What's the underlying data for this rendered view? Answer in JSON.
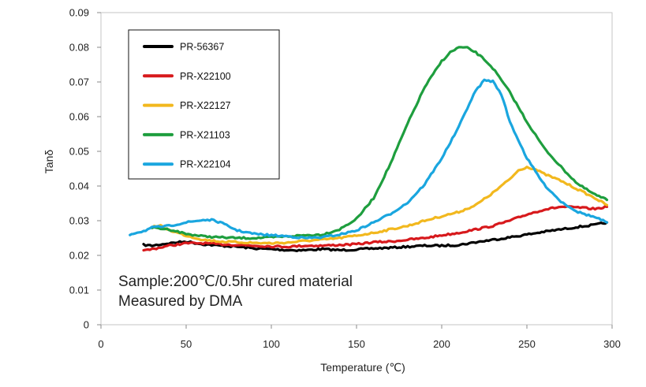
{
  "chart_data": {
    "type": "line",
    "title": "",
    "xlabel": "Temperature (℃)",
    "ylabel": "Tanδ",
    "xlim": [
      0,
      300
    ],
    "ylim": [
      0,
      0.09
    ],
    "x_ticks": [
      "0",
      "50",
      "100",
      "150",
      "200",
      "250",
      "300"
    ],
    "y_ticks": [
      "0",
      "0.01",
      "0.02",
      "0.03",
      "0.04",
      "0.05",
      "0.06",
      "0.07",
      "0.08",
      "0.09"
    ],
    "grid": false,
    "legend_position": "top-left",
    "annotations": [
      "Sample:200℃/0.5hr cured material",
      "Measured by DMA"
    ],
    "series": [
      {
        "name": "PR-56367",
        "color": "#000000",
        "x": [
          25,
          30,
          40,
          50,
          60,
          70,
          80,
          90,
          100,
          110,
          120,
          130,
          140,
          150,
          160,
          170,
          180,
          190,
          200,
          210,
          220,
          230,
          240,
          250,
          260,
          270,
          280,
          290,
          297
        ],
        "y": [
          0.023,
          0.0228,
          0.0235,
          0.024,
          0.0232,
          0.0228,
          0.0225,
          0.022,
          0.0218,
          0.0215,
          0.0215,
          0.0218,
          0.0215,
          0.0217,
          0.022,
          0.0222,
          0.0225,
          0.0228,
          0.0228,
          0.023,
          0.0238,
          0.0245,
          0.0252,
          0.026,
          0.0268,
          0.0275,
          0.0282,
          0.0288,
          0.0295
        ]
      },
      {
        "name": "PR-X22100",
        "color": "#d7191c",
        "x": [
          25,
          30,
          40,
          50,
          60,
          70,
          80,
          90,
          100,
          110,
          120,
          130,
          140,
          150,
          160,
          170,
          180,
          190,
          200,
          210,
          220,
          230,
          240,
          250,
          260,
          270,
          280,
          290,
          297
        ],
        "y": [
          0.0213,
          0.0218,
          0.0228,
          0.0235,
          0.0235,
          0.0232,
          0.023,
          0.0228,
          0.0226,
          0.0225,
          0.0228,
          0.0228,
          0.023,
          0.0232,
          0.0238,
          0.024,
          0.0245,
          0.025,
          0.0258,
          0.0265,
          0.0275,
          0.0285,
          0.03,
          0.0318,
          0.0332,
          0.034,
          0.0338,
          0.0334,
          0.034
        ]
      },
      {
        "name": "PR-X22127",
        "color": "#f2b81e",
        "x": [
          30,
          35,
          40,
          50,
          60,
          70,
          80,
          90,
          100,
          110,
          120,
          130,
          140,
          150,
          160,
          170,
          180,
          190,
          200,
          210,
          220,
          230,
          240,
          245,
          250,
          255,
          260,
          270,
          280,
          290,
          297
        ],
        "y": [
          0.0283,
          0.0285,
          0.0273,
          0.0257,
          0.0245,
          0.024,
          0.0238,
          0.0236,
          0.0235,
          0.0237,
          0.0242,
          0.0245,
          0.025,
          0.0257,
          0.0265,
          0.0275,
          0.0285,
          0.03,
          0.0313,
          0.0325,
          0.0345,
          0.038,
          0.042,
          0.0445,
          0.0455,
          0.0448,
          0.0435,
          0.0415,
          0.039,
          0.0365,
          0.0345
        ]
      },
      {
        "name": "PR-X21103",
        "color": "#1e9e3e",
        "x": [
          30,
          40,
          50,
          60,
          70,
          80,
          90,
          100,
          110,
          120,
          130,
          140,
          150,
          160,
          170,
          180,
          190,
          200,
          205,
          210,
          215,
          220,
          225,
          230,
          240,
          250,
          260,
          270,
          280,
          290,
          297
        ],
        "y": [
          0.028,
          0.0275,
          0.0262,
          0.0255,
          0.0252,
          0.025,
          0.025,
          0.0252,
          0.0255,
          0.0258,
          0.026,
          0.0275,
          0.0305,
          0.0365,
          0.0465,
          0.058,
          0.0685,
          0.076,
          0.0785,
          0.08,
          0.0798,
          0.0785,
          0.0765,
          0.074,
          0.067,
          0.0585,
          0.051,
          0.0455,
          0.0405,
          0.0375,
          0.036
        ]
      },
      {
        "name": "PR-X22104",
        "color": "#1aa6df",
        "x": [
          17,
          20,
          25,
          30,
          40,
          50,
          60,
          65,
          70,
          80,
          90,
          100,
          110,
          120,
          130,
          140,
          150,
          160,
          170,
          180,
          190,
          200,
          210,
          215,
          220,
          225,
          230,
          235,
          240,
          250,
          260,
          270,
          280,
          290,
          297
        ],
        "y": [
          0.026,
          0.0265,
          0.027,
          0.028,
          0.0285,
          0.0295,
          0.0302,
          0.0302,
          0.0295,
          0.0272,
          0.0262,
          0.0258,
          0.0255,
          0.025,
          0.0252,
          0.026,
          0.0272,
          0.0295,
          0.032,
          0.0352,
          0.0405,
          0.048,
          0.057,
          0.0625,
          0.0675,
          0.0705,
          0.0702,
          0.0665,
          0.0585,
          0.048,
          0.0405,
          0.0355,
          0.0325,
          0.031,
          0.0295
        ]
      }
    ]
  }
}
